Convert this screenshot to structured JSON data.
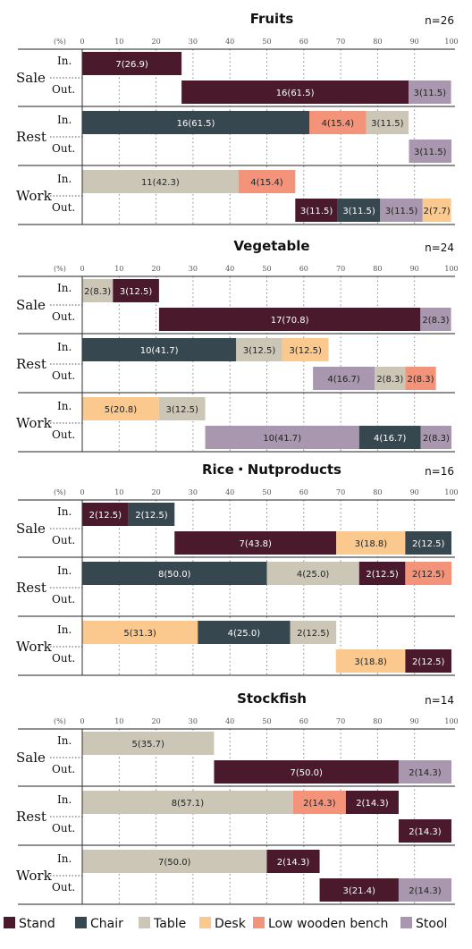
{
  "chart_data": [
    {
      "type": "bar",
      "stacked": true,
      "orientation": "horizontal",
      "title": "Fruits",
      "n_label": "n=26",
      "axis_unit": "(%)",
      "xlim": [
        0,
        100
      ],
      "xticks": [
        "0",
        "10",
        "20",
        "30",
        "40",
        "50",
        "60",
        "70",
        "80",
        "90",
        "100"
      ],
      "groups": [
        {
          "label": "Sale",
          "rows": [
            {
              "label": "In.",
              "segments": [
                {
                  "series": "Stand",
                  "start": 0,
                  "value": 26.9,
                  "text": "7(26.9)"
                }
              ]
            },
            {
              "label": "Out.",
              "segments": [
                {
                  "series": "Stand",
                  "start": 26.9,
                  "value": 61.5,
                  "text": "16(61.5)"
                },
                {
                  "series": "Stool",
                  "start": 88.4,
                  "value": 11.5,
                  "text": "3(11.5)"
                }
              ]
            }
          ]
        },
        {
          "label": "Rest",
          "rows": [
            {
              "label": "In.",
              "segments": [
                {
                  "series": "Chair",
                  "start": 0,
                  "value": 61.5,
                  "text": "16(61.5)"
                },
                {
                  "series": "Low wooden bench",
                  "start": 61.5,
                  "value": 15.4,
                  "text": "4(15.4)"
                },
                {
                  "series": "Table",
                  "start": 76.9,
                  "value": 11.5,
                  "text": "3(11.5)"
                }
              ]
            },
            {
              "label": "Out.",
              "segments": [
                {
                  "series": "Stool",
                  "start": 88.5,
                  "value": 11.5,
                  "text": "3(11.5)"
                }
              ]
            }
          ]
        },
        {
          "label": "Work",
          "rows": [
            {
              "label": "In.",
              "segments": [
                {
                  "series": "Table",
                  "start": 0,
                  "value": 42.3,
                  "text": "11(42.3)"
                },
                {
                  "series": "Low wooden bench",
                  "start": 42.3,
                  "value": 15.4,
                  "text": "4(15.4)"
                }
              ]
            },
            {
              "label": "Out.",
              "segments": [
                {
                  "series": "Stand",
                  "start": 57.7,
                  "value": 11.5,
                  "text": "3(11.5)"
                },
                {
                  "series": "Chair",
                  "start": 69.2,
                  "value": 11.5,
                  "text": "3(11.5)"
                },
                {
                  "series": "Stool",
                  "start": 80.7,
                  "value": 11.5,
                  "text": "3(11.5)"
                },
                {
                  "series": "Desk",
                  "start": 92.2,
                  "value": 7.7,
                  "text": "2(7.7)"
                }
              ]
            }
          ]
        }
      ]
    },
    {
      "type": "bar",
      "stacked": true,
      "orientation": "horizontal",
      "title": "Vegetable",
      "n_label": "n=24",
      "axis_unit": "(%)",
      "xlim": [
        0,
        100
      ],
      "xticks": [
        "0",
        "10",
        "20",
        "30",
        "40",
        "50",
        "60",
        "70",
        "80",
        "90",
        "100"
      ],
      "groups": [
        {
          "label": "Sale",
          "rows": [
            {
              "label": "In.",
              "segments": [
                {
                  "series": "Table",
                  "start": 0,
                  "value": 8.3,
                  "text": "2(8.3)"
                },
                {
                  "series": "Stand",
                  "start": 8.3,
                  "value": 12.5,
                  "text": "3(12.5)"
                }
              ]
            },
            {
              "label": "Out.",
              "segments": [
                {
                  "series": "Stand",
                  "start": 20.8,
                  "value": 70.8,
                  "text": "17(70.8)"
                },
                {
                  "series": "Stool",
                  "start": 91.6,
                  "value": 8.3,
                  "text": "2(8.3)"
                }
              ]
            }
          ]
        },
        {
          "label": "Rest",
          "rows": [
            {
              "label": "In.",
              "segments": [
                {
                  "series": "Chair",
                  "start": 0,
                  "value": 41.7,
                  "text": "10(41.7)"
                },
                {
                  "series": "Table",
                  "start": 41.7,
                  "value": 12.5,
                  "text": "3(12.5)"
                },
                {
                  "series": "Desk",
                  "start": 54.2,
                  "value": 12.5,
                  "text": "3(12.5)"
                }
              ]
            },
            {
              "label": "Out.",
              "segments": [
                {
                  "series": "Stool",
                  "start": 62.5,
                  "value": 16.7,
                  "text": "4(16.7)"
                },
                {
                  "series": "Table",
                  "start": 79.2,
                  "value": 8.3,
                  "text": "2(8.3)"
                },
                {
                  "series": "Low wooden bench",
                  "start": 87.5,
                  "value": 8.3,
                  "text": "2(8.3)"
                }
              ]
            }
          ]
        },
        {
          "label": "Work",
          "rows": [
            {
              "label": "In.",
              "segments": [
                {
                  "series": "Desk",
                  "start": 0,
                  "value": 20.8,
                  "text": "5(20.8)"
                },
                {
                  "series": "Table",
                  "start": 20.8,
                  "value": 12.5,
                  "text": "3(12.5)"
                }
              ]
            },
            {
              "label": "Out.",
              "segments": [
                {
                  "series": "Stool",
                  "start": 33.3,
                  "value": 41.7,
                  "text": "10(41.7)"
                },
                {
                  "series": "Chair",
                  "start": 75.0,
                  "value": 16.7,
                  "text": "4(16.7)"
                },
                {
                  "series": "Stool",
                  "start": 91.7,
                  "value": 8.3,
                  "text": "2(8.3)"
                }
              ]
            }
          ]
        }
      ]
    },
    {
      "type": "bar",
      "stacked": true,
      "orientation": "horizontal",
      "title": "Rice・Nutproducts",
      "n_label": "n=16",
      "axis_unit": "(%)",
      "xlim": [
        0,
        100
      ],
      "xticks": [
        "0",
        "10",
        "20",
        "30",
        "40",
        "50",
        "60",
        "70",
        "80",
        "90",
        "100"
      ],
      "groups": [
        {
          "label": "Sale",
          "rows": [
            {
              "label": "In.",
              "segments": [
                {
                  "series": "Stand",
                  "start": 0,
                  "value": 12.5,
                  "text": "2(12.5)"
                },
                {
                  "series": "Chair",
                  "start": 12.5,
                  "value": 12.5,
                  "text": "2(12.5)"
                }
              ]
            },
            {
              "label": "Out.",
              "segments": [
                {
                  "series": "Stand",
                  "start": 25,
                  "value": 43.8,
                  "text": "7(43.8)"
                },
                {
                  "series": "Desk",
                  "start": 68.8,
                  "value": 18.8,
                  "text": "3(18.8)"
                },
                {
                  "series": "Chair",
                  "start": 87.5,
                  "value": 12.5,
                  "text": "2(12.5)"
                }
              ]
            }
          ]
        },
        {
          "label": "Rest",
          "rows": [
            {
              "label": "In.",
              "segments": [
                {
                  "series": "Chair",
                  "start": 0,
                  "value": 50.0,
                  "text": "8(50.0)"
                },
                {
                  "series": "Table",
                  "start": 50,
                  "value": 25.0,
                  "text": "4(25.0)"
                },
                {
                  "series": "Stand",
                  "start": 75,
                  "value": 12.5,
                  "text": "2(12.5)"
                },
                {
                  "series": "Low wooden bench",
                  "start": 87.5,
                  "value": 12.5,
                  "text": "2(12.5)"
                }
              ]
            },
            {
              "label": "Out.",
              "segments": []
            }
          ]
        },
        {
          "label": "Work",
          "rows": [
            {
              "label": "In.",
              "segments": [
                {
                  "series": "Desk",
                  "start": 0,
                  "value": 31.3,
                  "text": "5(31.3)"
                },
                {
                  "series": "Chair",
                  "start": 31.3,
                  "value": 25.0,
                  "text": "4(25.0)"
                },
                {
                  "series": "Table",
                  "start": 56.3,
                  "value": 12.5,
                  "text": "2(12.5)"
                }
              ]
            },
            {
              "label": "Out.",
              "segments": [
                {
                  "series": "Desk",
                  "start": 68.7,
                  "value": 18.8,
                  "text": "3(18.8)"
                },
                {
                  "series": "Stand",
                  "start": 87.5,
                  "value": 12.5,
                  "text": "2(12.5)"
                }
              ]
            }
          ]
        }
      ]
    },
    {
      "type": "bar",
      "stacked": true,
      "orientation": "horizontal",
      "title": "Stockfish",
      "n_label": "n=14",
      "axis_unit": "(%)",
      "xlim": [
        0,
        100
      ],
      "xticks": [
        "0",
        "10",
        "20",
        "30",
        "40",
        "50",
        "60",
        "70",
        "80",
        "90",
        "100"
      ],
      "groups": [
        {
          "label": "Sale",
          "rows": [
            {
              "label": "In.",
              "segments": [
                {
                  "series": "Table",
                  "start": 0,
                  "value": 35.7,
                  "text": "5(35.7)"
                }
              ]
            },
            {
              "label": "Out.",
              "segments": [
                {
                  "series": "Stand",
                  "start": 35.7,
                  "value": 50.0,
                  "text": "7(50.0)"
                },
                {
                  "series": "Stool",
                  "start": 85.7,
                  "value": 14.3,
                  "text": "2(14.3)"
                }
              ]
            }
          ]
        },
        {
          "label": "Rest",
          "rows": [
            {
              "label": "In.",
              "segments": [
                {
                  "series": "Table",
                  "start": 0,
                  "value": 57.1,
                  "text": "8(57.1)"
                },
                {
                  "series": "Low wooden bench",
                  "start": 57.1,
                  "value": 14.3,
                  "text": "2(14.3)"
                },
                {
                  "series": "Stand",
                  "start": 71.4,
                  "value": 14.3,
                  "text": "2(14.3)"
                }
              ]
            },
            {
              "label": "Out.",
              "segments": [
                {
                  "series": "Stand",
                  "start": 85.7,
                  "value": 14.3,
                  "text": "2(14.3)"
                }
              ]
            }
          ]
        },
        {
          "label": "Work",
          "rows": [
            {
              "label": "In.",
              "segments": [
                {
                  "series": "Table",
                  "start": 0,
                  "value": 50.0,
                  "text": "7(50.0)"
                },
                {
                  "series": "Stand",
                  "start": 50,
                  "value": 14.3,
                  "text": "2(14.3)"
                }
              ]
            },
            {
              "label": "Out.",
              "segments": [
                {
                  "series": "Stand",
                  "start": 64.3,
                  "value": 21.4,
                  "text": "3(21.4)"
                },
                {
                  "series": "Stool",
                  "start": 85.7,
                  "value": 14.3,
                  "text": "2(14.3)"
                }
              ]
            }
          ]
        }
      ]
    }
  ],
  "legend": {
    "placement": "bottom",
    "items": [
      {
        "name": "Stand",
        "color": "#4a1a2c"
      },
      {
        "name": "Chair",
        "color": "#37474f"
      },
      {
        "name": "Table",
        "color": "#cbc6b5"
      },
      {
        "name": "Desk",
        "color": "#fbc88e"
      },
      {
        "name": "Low wooden bench",
        "color": "#f3937a"
      },
      {
        "name": "Stool",
        "color": "#a897ae"
      }
    ]
  }
}
